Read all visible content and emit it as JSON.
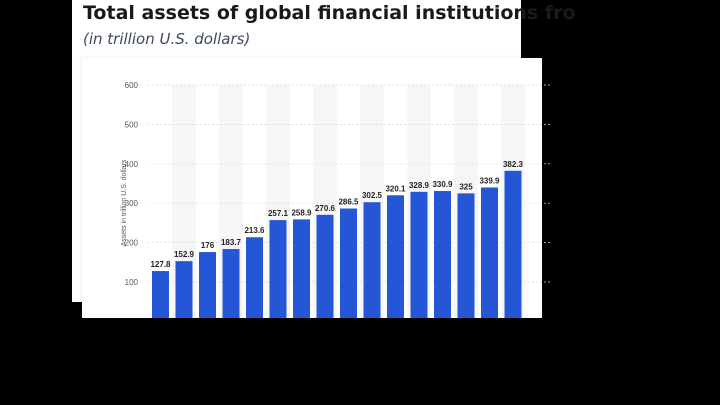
{
  "header": {
    "title": "Total assets of global financial institutions fro",
    "subtitle": "(in trillion U.S. dollars)"
  },
  "colors": {
    "bar": "#2456d6",
    "band": "#f6f6f6",
    "grid": "#d9d9d9"
  },
  "chart_data": {
    "type": "bar",
    "title": "Total assets of global financial institutions fro",
    "subtitle": "(in trillion U.S. dollars)",
    "ylabel": "Assets in trillion U.S. dollars",
    "yticks": [
      100,
      200,
      300,
      400,
      500,
      600
    ],
    "ylim": [
      0,
      600
    ],
    "grid": true,
    "values": [
      127.8,
      152.9,
      176,
      183.7,
      213.6,
      257.1,
      258.9,
      270.6,
      286.5,
      302.5,
      320.1,
      328.9,
      330.9,
      325,
      339.9,
      382.3
    ],
    "value_labels": [
      "127.8",
      "152.9",
      "176",
      "183.7",
      "213.6",
      "257.1",
      "258.9",
      "270.6",
      "286.5",
      "302.5",
      "320.1",
      "328.9",
      "330.9",
      "325",
      "339.9",
      "382.3"
    ]
  }
}
